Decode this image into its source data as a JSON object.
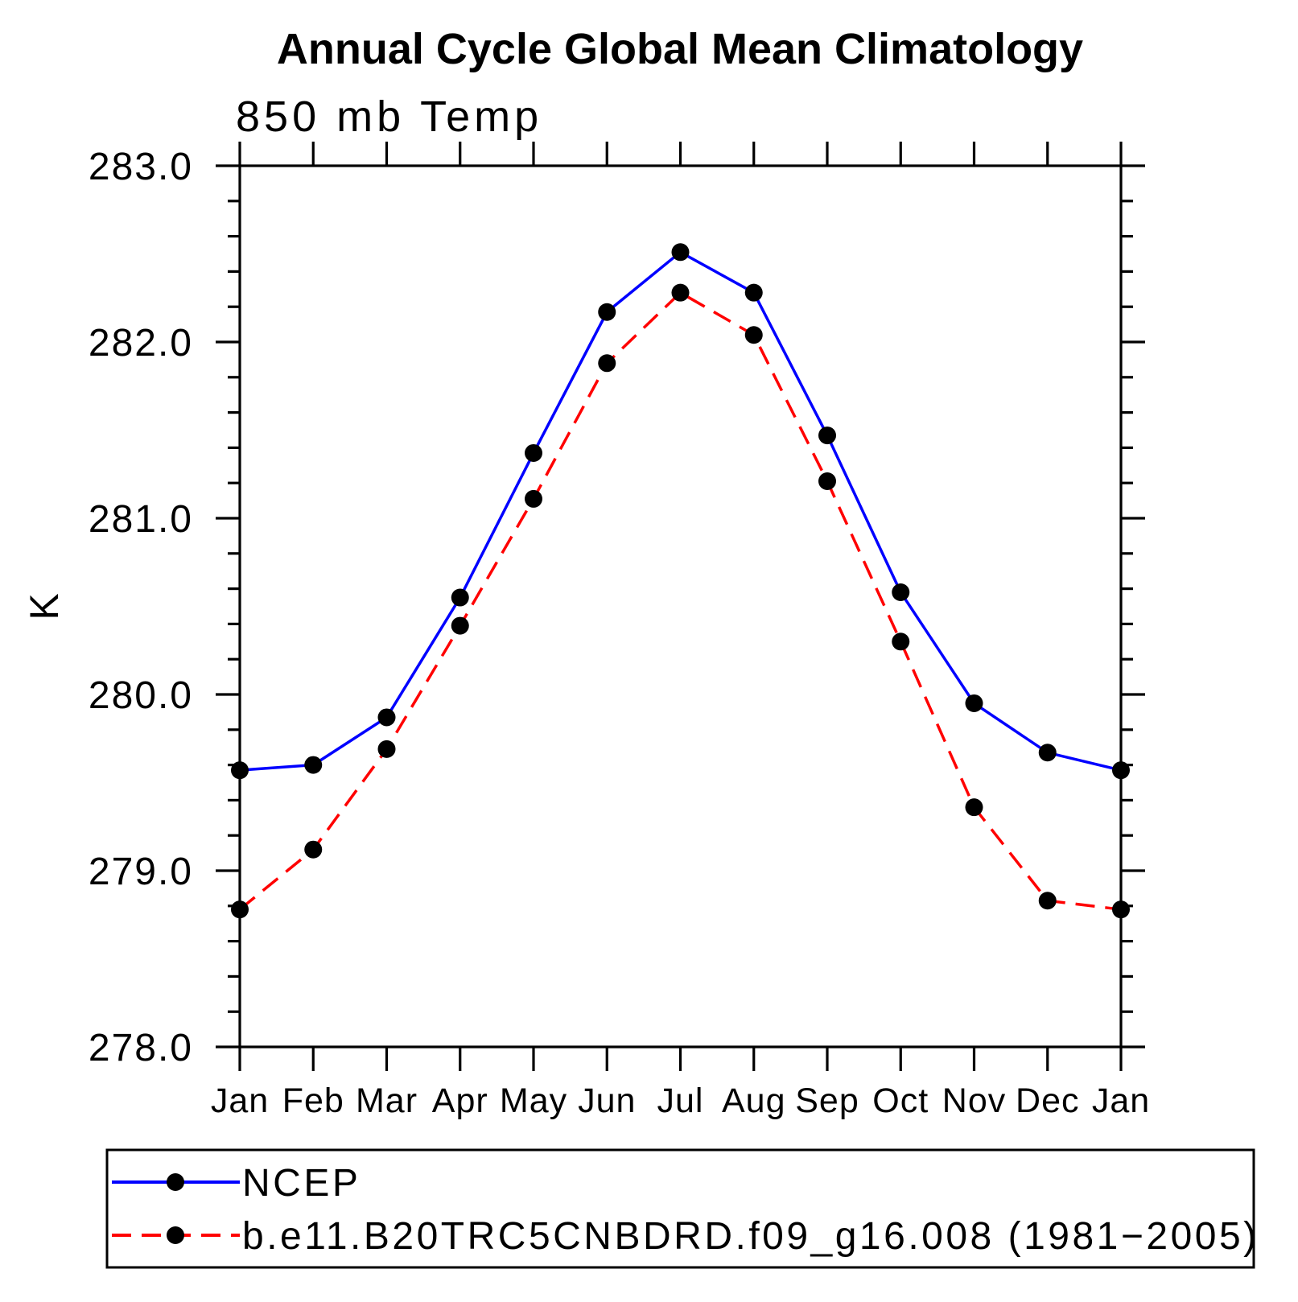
{
  "page": {
    "background_color": "#ffffff",
    "text_color": "#000000"
  },
  "header": {
    "title": "Annual Cycle Global Mean Climatology",
    "subtitle": "850 mb Temp"
  },
  "y_axis": {
    "label": "K",
    "tick_labels": [
      "283.0",
      "282.0",
      "281.0",
      "280.0",
      "279.0",
      "278.0"
    ],
    "major_tick_step": 1.0,
    "minor_tick_step": 0.2
  },
  "x_axis": {
    "tick_labels": [
      "Jan",
      "Feb",
      "Mar",
      "Apr",
      "May",
      "Jun",
      "Jul",
      "Aug",
      "Sep",
      "Oct",
      "Nov",
      "Dec",
      "Jan"
    ]
  },
  "legend": {
    "position": "bottom",
    "items": [
      {
        "label": "NCEP",
        "line_color": "#0000ff",
        "line_style": "solid",
        "marker": "filled-circle",
        "marker_color": "#000000"
      },
      {
        "label": "b.e11.B20TRC5CNBDRD.f09_g16.008 (1981−2005)",
        "line_color": "#ff0000",
        "line_style": "dashed",
        "marker": "filled-circle",
        "marker_color": "#000000"
      }
    ]
  },
  "chart_data": {
    "type": "line",
    "title": "Annual Cycle Global Mean Climatology",
    "subtitle": "850 mb Temp",
    "xlabel": "",
    "ylabel": "K",
    "ylim": [
      278.0,
      283.0
    ],
    "y_major_tick_step": 1.0,
    "y_minor_tick_step": 0.2,
    "grid": false,
    "legend_position": "bottom",
    "x_categories": [
      "Jan",
      "Feb",
      "Mar",
      "Apr",
      "May",
      "Jun",
      "Jul",
      "Aug",
      "Sep",
      "Oct",
      "Nov",
      "Dec",
      "Jan"
    ],
    "series": [
      {
        "name": "NCEP",
        "color": "#0000ff",
        "line_style": "solid",
        "marker": "circle",
        "marker_color": "#000000",
        "values": [
          279.57,
          279.6,
          279.87,
          280.55,
          281.37,
          282.17,
          282.51,
          282.28,
          281.47,
          280.58,
          279.95,
          279.67,
          279.57
        ]
      },
      {
        "name": "b.e11.B20TRC5CNBDRD.f09_g16.008 (1981−2005)",
        "color": "#ff0000",
        "line_style": "dashed",
        "marker": "circle",
        "marker_color": "#000000",
        "values": [
          278.78,
          279.12,
          279.69,
          280.39,
          281.11,
          281.88,
          282.28,
          282.04,
          281.21,
          280.3,
          279.36,
          278.83,
          278.78
        ]
      }
    ]
  }
}
